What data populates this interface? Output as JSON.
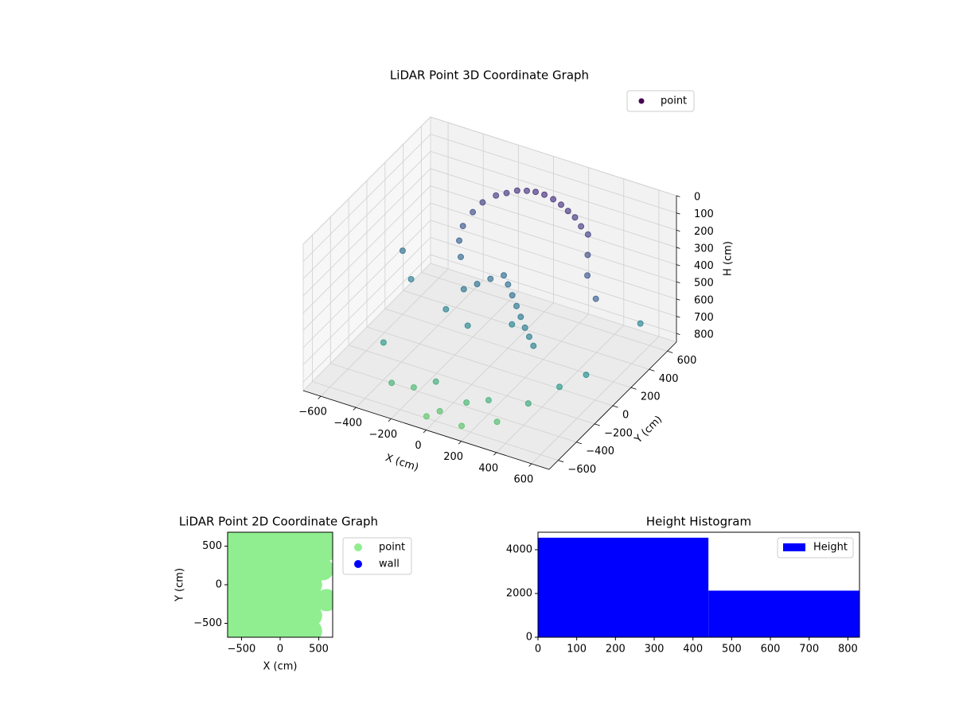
{
  "chart_data": [
    {
      "type": "scatter3d",
      "title": "LiDAR Point 3D Coordinate Graph",
      "xlabel": "X (cm)",
      "ylabel": "Y (cm)",
      "zlabel": "H (cm)",
      "xlim": [
        -700,
        700
      ],
      "ylim": [
        -700,
        700
      ],
      "zlim": [
        850,
        0
      ],
      "xticks": [
        {
          "value": -600,
          "label": "−600"
        },
        {
          "value": -400,
          "label": "−400"
        },
        {
          "value": -200,
          "label": "−200"
        },
        0,
        200,
        400,
        600
      ],
      "yticks": [
        {
          "value": -600,
          "label": "−600"
        },
        {
          "value": -400,
          "label": "−400"
        },
        {
          "value": -200,
          "label": "−200"
        },
        0,
        200,
        400,
        600
      ],
      "zticks": [
        0,
        100,
        200,
        300,
        400,
        500,
        600,
        700,
        800
      ],
      "colormap": [
        "#440154",
        "#472d7b",
        "#3b528b",
        "#2c728e",
        "#21918c",
        "#5ec962"
      ],
      "series": [
        {
          "name": "point",
          "color": "#440154",
          "x": [
            -250,
            -200,
            -150,
            -100,
            -50,
            0,
            50,
            100,
            150,
            200,
            250,
            -300,
            -330,
            -350,
            -340,
            -300,
            300,
            350,
            400,
            500,
            -200,
            -150,
            -100,
            -50,
            0,
            50,
            100,
            150,
            200,
            250,
            300,
            -250,
            -100,
            100,
            -300,
            -200,
            -100,
            0,
            100,
            200,
            300,
            400,
            -50,
            150,
            500,
            600,
            -600,
            -500,
            -450,
            650
          ],
          "y": [
            550,
            570,
            590,
            600,
            600,
            600,
            600,
            590,
            570,
            550,
            520,
            500,
            450,
            380,
            320,
            260,
            500,
            400,
            300,
            200,
            100,
            150,
            200,
            250,
            200,
            150,
            100,
            50,
            0,
            -50,
            -100,
            0,
            -50,
            50,
            -500,
            -450,
            -400,
            -550,
            -450,
            -400,
            -500,
            -350,
            -600,
            -600,
            -200,
            -100,
            200,
            100,
            -300,
            400
          ],
          "values": [
            230,
            210,
            190,
            180,
            170,
            170,
            180,
            190,
            200,
            210,
            230,
            260,
            300,
            350,
            400,
            450,
            250,
            300,
            350,
            400,
            520,
            500,
            480,
            470,
            480,
            500,
            520,
            540,
            560,
            570,
            580,
            600,
            620,
            600,
            780,
            800,
            760,
            820,
            790,
            770,
            810,
            750,
            840,
            830,
            700,
            650,
            480,
            560,
            700,
            600
          ]
        }
      ]
    },
    {
      "type": "scatter",
      "title": "LiDAR Point 2D Coordinate Graph",
      "xlabel": "X (cm)",
      "ylabel": "Y (cm)",
      "xlim": [
        -680,
        680
      ],
      "ylim": [
        -680,
        680
      ],
      "xticks": [
        {
          "value": -500,
          "label": "−500"
        },
        0,
        500
      ],
      "yticks": [
        {
          "value": -500,
          "label": "−500"
        },
        0,
        500
      ],
      "series": [
        {
          "name": "point",
          "color": "#90ee90",
          "x": [
            -600,
            -600,
            -600,
            -600,
            -600,
            -600,
            -600,
            -400,
            -400,
            -400,
            -400,
            -400,
            -400,
            -400,
            -200,
            -200,
            -200,
            -200,
            -200,
            -200,
            -200,
            0,
            0,
            0,
            0,
            0,
            0,
            0,
            200,
            200,
            200,
            200,
            200,
            200,
            200,
            400,
            400,
            400,
            400,
            400,
            400,
            400,
            550,
            550,
            600,
            600
          ],
          "y": [
            -600,
            -400,
            -200,
            0,
            200,
            400,
            600,
            -600,
            -400,
            -200,
            0,
            200,
            400,
            600,
            -600,
            -400,
            -200,
            0,
            200,
            400,
            600,
            -600,
            -400,
            -200,
            0,
            200,
            400,
            600,
            -600,
            -400,
            -200,
            0,
            200,
            400,
            600,
            -600,
            -400,
            -200,
            0,
            200,
            400,
            600,
            600,
            200,
            -200,
            450
          ]
        },
        {
          "name": "wall",
          "color": "#0000ff",
          "x": [],
          "y": []
        }
      ]
    },
    {
      "type": "histogram",
      "title": "Height Histogram",
      "color": "#0000ff",
      "legend": "Height",
      "bins": [
        0,
        440,
        830
      ],
      "values": [
        4550,
        2130
      ],
      "xlim": [
        0,
        830
      ],
      "ylim": [
        0,
        4800
      ],
      "xticks": [
        0,
        100,
        200,
        300,
        400,
        500,
        600,
        700,
        800
      ],
      "yticks": [
        0,
        2000,
        4000
      ]
    }
  ]
}
